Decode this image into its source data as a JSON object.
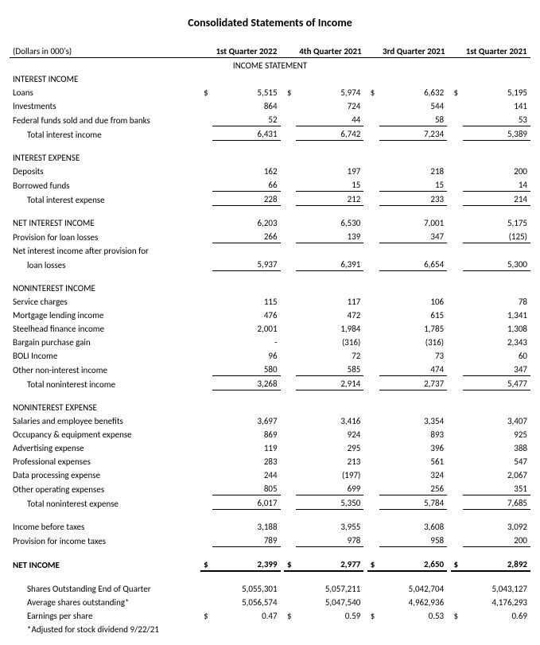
{
  "title": "Consolidated Statements of Income",
  "header": {
    "units": "(Dollars in 000's)",
    "c1": "1st Quarter 2022",
    "c2": "4th Quarter 2021",
    "c3": "3rd Quarter 2021",
    "c4": "1st Quarter 2021",
    "statement": "INCOME STATEMENT"
  },
  "interest_income": {
    "label": "INTEREST INCOME",
    "loans": {
      "label": "Loans",
      "c1": "5,515",
      "c2": "5,974",
      "c3": "6,632",
      "c4": "5,195"
    },
    "investments": {
      "label": "Investments",
      "c1": "864",
      "c2": "724",
      "c3": "544",
      "c4": "141"
    },
    "fedfunds": {
      "label": "Federal funds sold and due from banks",
      "c1": "52",
      "c2": "44",
      "c3": "58",
      "c4": "53"
    },
    "total": {
      "label": "Total interest income",
      "c1": "6,431",
      "c2": "6,742",
      "c3": "7,234",
      "c4": "5,389"
    }
  },
  "interest_expense": {
    "label": "INTEREST EXPENSE",
    "deposits": {
      "label": "Deposits",
      "c1": "162",
      "c2": "197",
      "c3": "218",
      "c4": "200"
    },
    "borrowed": {
      "label": "Borrowed funds",
      "c1": "66",
      "c2": "15",
      "c3": "15",
      "c4": "14"
    },
    "total": {
      "label": "Total interest expense",
      "c1": "228",
      "c2": "212",
      "c3": "233",
      "c4": "214"
    }
  },
  "nii": {
    "label": "NET INTEREST INCOME",
    "c1": "6,203",
    "c2": "6,530",
    "c3": "7,001",
    "c4": "5,175",
    "provision": {
      "label": "Provision for loan losses",
      "c1": "266",
      "c2": "139",
      "c3": "347",
      "c4": "(125)"
    },
    "after_label1": "Net interest income after provision for",
    "after_label2": "loan losses",
    "after": {
      "c1": "5,937",
      "c2": "6,391",
      "c3": "6,654",
      "c4": "5,300"
    }
  },
  "nonint_income": {
    "label": "NONINTEREST INCOME",
    "service": {
      "label": "Service charges",
      "c1": "115",
      "c2": "117",
      "c3": "106",
      "c4": "78"
    },
    "mortgage": {
      "label": "Mortgage lending income",
      "c1": "476",
      "c2": "472",
      "c3": "615",
      "c4": "1,341"
    },
    "steelhead": {
      "label": "Steelhead finance income",
      "c1": "2,001",
      "c2": "1,984",
      "c3": "1,785",
      "c4": "1,308"
    },
    "bargain": {
      "label": "Bargain purchase gain",
      "c1": "-",
      "c2": "(316)",
      "c3": "(316)",
      "c4": "2,343"
    },
    "boli": {
      "label": "BOLI Income",
      "c1": "96",
      "c2": "72",
      "c3": "73",
      "c4": "60"
    },
    "other": {
      "label": "Other non-interest income",
      "c1": "580",
      "c2": "585",
      "c3": "474",
      "c4": "347"
    },
    "total": {
      "label": "Total noninterest income",
      "c1": "3,268",
      "c2": "2,914",
      "c3": "2,737",
      "c4": "5,477"
    }
  },
  "nonint_expense": {
    "label": "NONINTEREST EXPENSE",
    "salaries": {
      "label": "Salaries and employee benefits",
      "c1": "3,697",
      "c2": "3,416",
      "c3": "3,354",
      "c4": "3,407"
    },
    "occupancy": {
      "label": "Occupancy & equipment expense",
      "c1": "869",
      "c2": "924",
      "c3": "893",
      "c4": "925"
    },
    "advertising": {
      "label": "Advertising expense",
      "c1": "119",
      "c2": "295",
      "c3": "396",
      "c4": "388"
    },
    "professional": {
      "label": "Professional expenses",
      "c1": "283",
      "c2": "213",
      "c3": "561",
      "c4": "547"
    },
    "dataproc": {
      "label": "Data processing expense",
      "c1": "244",
      "c2": "(197)",
      "c3": "324",
      "c4": "2,067"
    },
    "otherop": {
      "label": "Other operating expenses",
      "c1": "805",
      "c2": "699",
      "c3": "256",
      "c4": "351"
    },
    "total": {
      "label": "Total noninterest expense",
      "c1": "6,017",
      "c2": "5,350",
      "c3": "5,784",
      "c4": "7,685"
    }
  },
  "pretax": {
    "ibt": {
      "label": "Income before taxes",
      "c1": "3,188",
      "c2": "3,955",
      "c3": "3,608",
      "c4": "3,092"
    },
    "tax": {
      "label": "Provision for income taxes",
      "c1": "789",
      "c2": "978",
      "c3": "958",
      "c4": "200"
    }
  },
  "net_income": {
    "label": "NET INCOME",
    "c1": "2,399",
    "c2": "2,977",
    "c3": "2,650",
    "c4": "2,892"
  },
  "shares": {
    "end": {
      "label": "Shares Outstanding End of Quarter",
      "c1": "5,055,301",
      "c2": "5,057,211",
      "c3": "5,042,704",
      "c4": "5,043,127"
    },
    "avg": {
      "label": "Average shares outstanding*",
      "c1": "5,056,574",
      "c2": "5,047,540",
      "c3": "4,962,936",
      "c4": "4,176,293"
    },
    "eps": {
      "label": "Earnings per share",
      "c1": "0.47",
      "c2": "0.59",
      "c3": "0.53",
      "c4": "0.69"
    },
    "note": "*Adjusted for stock dividend 9/22/21"
  },
  "dollar": "$"
}
